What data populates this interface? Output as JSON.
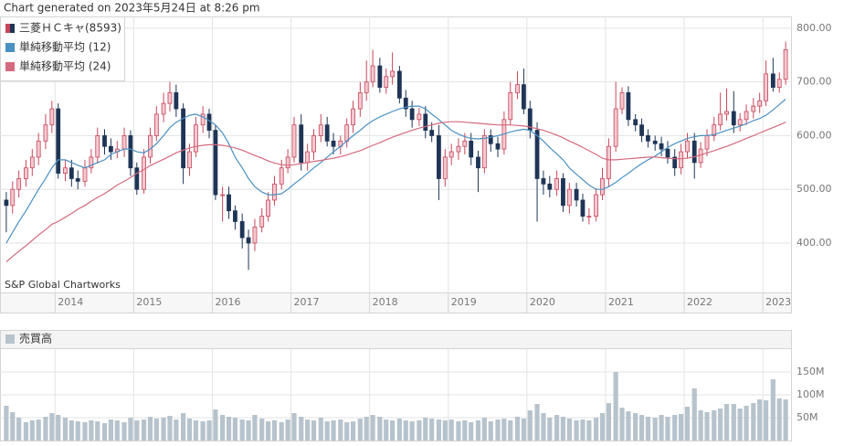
{
  "caption": "Chart generated on 2023年5月24日 at 8:26 pm",
  "chart_data": [
    {
      "type": "candlestick",
      "annotation": "S&P Global Chartworks",
      "legend": "top-left",
      "grid": true,
      "xlim": [
        2013.3,
        2023.37
      ],
      "xticks": [
        2014,
        2015,
        2016,
        2017,
        2018,
        2019,
        2020,
        2021,
        2022,
        2023
      ],
      "ylim": [
        308,
        822
      ],
      "yticks": [
        {
          "value": 400,
          "label": "400.00"
        },
        {
          "value": 500,
          "label": "500.00"
        },
        {
          "value": 600,
          "label": "600.00"
        },
        {
          "value": 700,
          "label": "700.00"
        },
        {
          "value": 800,
          "label": "800.00"
        }
      ],
      "x": [
        2013.38,
        2013.46,
        2013.54,
        2013.63,
        2013.71,
        2013.79,
        2013.88,
        2013.96,
        2014.04,
        2014.13,
        2014.21,
        2014.29,
        2014.38,
        2014.46,
        2014.54,
        2014.63,
        2014.71,
        2014.79,
        2014.88,
        2014.96,
        2015.04,
        2015.13,
        2015.21,
        2015.29,
        2015.38,
        2015.46,
        2015.54,
        2015.63,
        2015.71,
        2015.79,
        2015.88,
        2015.96,
        2016.04,
        2016.13,
        2016.21,
        2016.29,
        2016.38,
        2016.46,
        2016.54,
        2016.63,
        2016.71,
        2016.79,
        2016.88,
        2016.96,
        2017.04,
        2017.13,
        2017.21,
        2017.29,
        2017.38,
        2017.46,
        2017.54,
        2017.63,
        2017.71,
        2017.79,
        2017.88,
        2017.96,
        2018.04,
        2018.13,
        2018.21,
        2018.29,
        2018.38,
        2018.46,
        2018.54,
        2018.63,
        2018.71,
        2018.79,
        2018.88,
        2018.96,
        2019.04,
        2019.13,
        2019.21,
        2019.29,
        2019.38,
        2019.46,
        2019.54,
        2019.63,
        2019.71,
        2019.79,
        2019.88,
        2019.96,
        2020.04,
        2020.13,
        2020.21,
        2020.29,
        2020.38,
        2020.46,
        2020.54,
        2020.63,
        2020.71,
        2020.79,
        2020.88,
        2020.96,
        2021.04,
        2021.13,
        2021.21,
        2021.29,
        2021.38,
        2021.46,
        2021.54,
        2021.63,
        2021.71,
        2021.79,
        2021.88,
        2021.96,
        2022.04,
        2022.13,
        2022.21,
        2022.29,
        2022.38,
        2022.46,
        2022.54,
        2022.63,
        2022.71,
        2022.79,
        2022.88,
        2022.96,
        2023.04,
        2023.13,
        2023.21,
        2023.29
      ],
      "series": [
        {
          "name": "三菱ＨＣキャ(8593)",
          "up_color": "#c8465a",
          "down_color": "#1f3556",
          "open": [
            480,
            470,
            500,
            520,
            540,
            560,
            590,
            620,
            650,
            530,
            540,
            520,
            515,
            540,
            560,
            600,
            580,
            570,
            575,
            600,
            540,
            500,
            560,
            600,
            640,
            660,
            680,
            650,
            540,
            570,
            620,
            640,
            610,
            490,
            490,
            460,
            440,
            410,
            400,
            430,
            450,
            480,
            510,
            540,
            560,
            620,
            550,
            570,
            600,
            620,
            590,
            580,
            590,
            620,
            650,
            680,
            700,
            730,
            690,
            710,
            720,
            670,
            650,
            630,
            640,
            610,
            600,
            520,
            560,
            570,
            580,
            590,
            560,
            540,
            600,
            585,
            575,
            630,
            680,
            695,
            650,
            610,
            520,
            510,
            500,
            520,
            470,
            500,
            480,
            450,
            450,
            490,
            520,
            580,
            650,
            680,
            630,
            620,
            600,
            590,
            585,
            575,
            560,
            540,
            570,
            590,
            550,
            575,
            600,
            620,
            640,
            645,
            620,
            630,
            645,
            655,
            665,
            715,
            690,
            705
          ],
          "high": [
            495,
            515,
            535,
            555,
            575,
            605,
            640,
            665,
            660,
            555,
            555,
            535,
            555,
            575,
            615,
            612,
            595,
            590,
            615,
            610,
            550,
            575,
            615,
            655,
            680,
            700,
            695,
            660,
            585,
            635,
            655,
            650,
            620,
            505,
            505,
            470,
            455,
            425,
            445,
            465,
            495,
            525,
            555,
            575,
            635,
            640,
            585,
            612,
            640,
            635,
            605,
            600,
            632,
            665,
            700,
            740,
            760,
            745,
            725,
            755,
            730,
            685,
            665,
            652,
            655,
            625,
            620,
            575,
            585,
            595,
            605,
            605,
            572,
            612,
            612,
            598,
            645,
            700,
            720,
            725,
            665,
            625,
            535,
            525,
            535,
            530,
            512,
            512,
            492,
            465,
            502,
            540,
            595,
            700,
            690,
            692,
            640,
            632,
            612,
            600,
            598,
            590,
            575,
            585,
            605,
            605,
            588,
            612,
            635,
            680,
            688,
            683,
            642,
            658,
            670,
            680,
            740,
            745,
            718,
            775
          ],
          "low": [
            420,
            455,
            485,
            505,
            525,
            545,
            575,
            605,
            520,
            515,
            505,
            500,
            505,
            530,
            548,
            565,
            555,
            558,
            560,
            525,
            490,
            492,
            548,
            590,
            625,
            645,
            635,
            510,
            525,
            560,
            605,
            595,
            480,
            440,
            445,
            425,
            390,
            350,
            385,
            420,
            440,
            470,
            500,
            530,
            550,
            535,
            535,
            555,
            588,
            580,
            565,
            565,
            578,
            605,
            635,
            665,
            690,
            680,
            678,
            695,
            660,
            635,
            615,
            618,
            595,
            588,
            480,
            505,
            545,
            555,
            565,
            545,
            495,
            530,
            570,
            560,
            565,
            620,
            668,
            640,
            595,
            440,
            490,
            485,
            488,
            458,
            455,
            468,
            440,
            435,
            440,
            480,
            505,
            570,
            640,
            618,
            608,
            588,
            578,
            572,
            562,
            548,
            525,
            528,
            558,
            520,
            540,
            562,
            590,
            610,
            628,
            605,
            608,
            620,
            632,
            642,
            655,
            682,
            680,
            695
          ],
          "close": [
            470,
            500,
            520,
            540,
            560,
            590,
            620,
            650,
            530,
            540,
            520,
            515,
            540,
            560,
            600,
            580,
            570,
            575,
            600,
            540,
            500,
            560,
            600,
            640,
            660,
            680,
            650,
            540,
            570,
            620,
            640,
            610,
            490,
            490,
            460,
            440,
            410,
            400,
            430,
            450,
            480,
            510,
            540,
            560,
            620,
            550,
            570,
            600,
            620,
            590,
            580,
            590,
            620,
            650,
            680,
            700,
            730,
            690,
            710,
            720,
            670,
            650,
            630,
            640,
            610,
            600,
            520,
            560,
            570,
            580,
            590,
            560,
            540,
            600,
            585,
            575,
            630,
            680,
            695,
            650,
            610,
            520,
            510,
            500,
            520,
            470,
            500,
            480,
            450,
            450,
            490,
            520,
            580,
            650,
            680,
            630,
            620,
            600,
            590,
            585,
            575,
            560,
            540,
            570,
            590,
            550,
            575,
            600,
            620,
            640,
            645,
            620,
            630,
            645,
            655,
            665,
            715,
            690,
            705,
            760
          ]
        },
        {
          "name": "単純移動平均 (12)",
          "color": "#4a90c2",
          "values": [
            400,
            420,
            440,
            460,
            480,
            500,
            520,
            540,
            555,
            555,
            550,
            545,
            540,
            545,
            550,
            555,
            565,
            570,
            575,
            575,
            570,
            568,
            575,
            585,
            600,
            615,
            625,
            632,
            638,
            640,
            635,
            628,
            620,
            605,
            585,
            560,
            540,
            520,
            505,
            495,
            490,
            490,
            492,
            500,
            510,
            520,
            530,
            540,
            550,
            560,
            570,
            580,
            590,
            600,
            610,
            620,
            628,
            635,
            640,
            645,
            650,
            653,
            655,
            655,
            650,
            640,
            630,
            620,
            610,
            603,
            598,
            595,
            594,
            595,
            597,
            600,
            603,
            607,
            610,
            612,
            610,
            600,
            590,
            578,
            566,
            555,
            540,
            528,
            518,
            508,
            500,
            500,
            505,
            513,
            522,
            530,
            540,
            548,
            555,
            562,
            570,
            578,
            585,
            590,
            595,
            598,
            600,
            600,
            602,
            606,
            610,
            614,
            618,
            622,
            628,
            632,
            638,
            648,
            658,
            668
          ]
        },
        {
          "name": "単純移動平均 (24)",
          "color": "#d46a7e",
          "values": [
            365,
            375,
            385,
            395,
            405,
            415,
            425,
            435,
            440,
            448,
            455,
            463,
            470,
            478,
            485,
            492,
            500,
            508,
            515,
            522,
            530,
            537,
            544,
            550,
            556,
            562,
            568,
            573,
            577,
            580,
            582,
            583,
            583,
            582,
            580,
            577,
            573,
            568,
            563,
            558,
            553,
            549,
            546,
            545,
            546,
            548,
            550,
            552,
            554,
            556,
            558,
            561,
            564,
            568,
            572,
            577,
            582,
            587,
            592,
            597,
            602,
            606,
            610,
            614,
            617,
            620,
            623,
            625,
            626,
            626,
            625,
            624,
            623,
            622,
            621,
            620,
            620,
            620,
            619,
            618,
            616,
            613,
            610,
            606,
            601,
            596,
            590,
            584,
            578,
            572,
            565,
            558,
            555,
            555,
            556,
            557,
            558,
            559,
            560,
            560,
            559,
            558,
            557,
            557,
            558,
            561,
            564,
            568,
            572,
            576,
            580,
            585,
            590,
            595,
            600,
            605,
            610,
            615,
            620,
            625
          ]
        }
      ]
    },
    {
      "type": "bar",
      "grid": true,
      "ylim": [
        0,
        200
      ],
      "yticks": [
        {
          "value": 50,
          "label": "50M"
        },
        {
          "value": 100,
          "label": "100M"
        },
        {
          "value": 150,
          "label": "150M"
        }
      ],
      "series": [
        {
          "name": "売買高",
          "color": "#b7c3cc",
          "values": [
            76,
            62,
            50,
            40,
            44,
            46,
            52,
            60,
            56,
            50,
            44,
            42,
            40,
            44,
            42,
            38,
            46,
            44,
            40,
            50,
            44,
            46,
            52,
            48,
            50,
            54,
            46,
            60,
            48,
            44,
            42,
            44,
            68,
            56,
            52,
            50,
            46,
            44,
            56,
            48,
            42,
            44,
            40,
            46,
            60,
            52,
            46,
            44,
            50,
            42,
            44,
            46,
            40,
            42,
            48,
            52,
            56,
            52,
            46,
            44,
            48,
            44,
            42,
            44,
            50,
            48,
            46,
            44,
            46,
            42,
            44,
            40,
            44,
            50,
            42,
            46,
            48,
            44,
            52,
            48,
            66,
            80,
            60,
            50,
            56,
            52,
            48,
            44,
            46,
            44,
            50,
            60,
            82,
            150,
            72,
            64,
            60,
            56,
            52,
            50,
            56,
            52,
            56,
            58,
            74,
            114,
            66,
            62,
            66,
            70,
            80,
            80,
            70,
            76,
            82,
            90,
            88,
            134,
            92,
            90
          ]
        }
      ]
    }
  ]
}
